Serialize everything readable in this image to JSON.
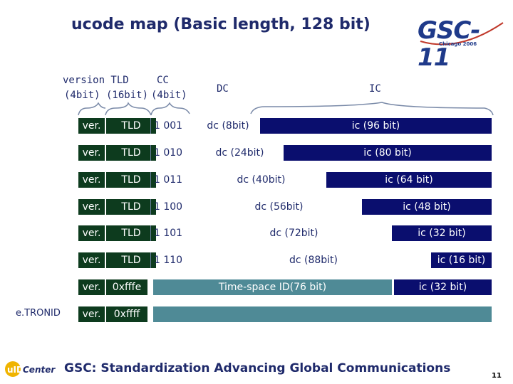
{
  "title": "ucode map (Basic length, 128 bit)",
  "logo": {
    "main": "GSC-11",
    "sub": "Chicago 2006"
  },
  "headers": {
    "version_tld": "version  TLD",
    "version_tld_bits": "(4bit) (16bit)",
    "cc": "CC",
    "cc_bits": "(4bit)",
    "dc": "DC",
    "ic": "IC"
  },
  "rows": [
    {
      "ver": "ver.",
      "tld": "TLD",
      "cc": "1 001",
      "dc": "dc (8bit)",
      "ic": "ic (96 bit)"
    },
    {
      "ver": "ver.",
      "tld": "TLD",
      "cc": "1 010",
      "dc": "dc (24bit)",
      "ic": "ic (80 bit)"
    },
    {
      "ver": "ver.",
      "tld": "TLD",
      "cc": "1 011",
      "dc": "dc (40bit)",
      "ic": "ic (64 bit)"
    },
    {
      "ver": "ver.",
      "tld": "TLD",
      "cc": "1 100",
      "dc": "dc (56bit)",
      "ic": "ic (48 bit)"
    },
    {
      "ver": "ver.",
      "tld": "TLD",
      "cc": "1 101",
      "dc": "dc (72bit)",
      "ic": "ic (32 bit)"
    },
    {
      "ver": "ver.",
      "tld": "TLD",
      "cc": "1 110",
      "dc": "dc (88bit)",
      "ic": "ic (16 bit)"
    },
    {
      "ver": "ver.",
      "hex": "0xfffe",
      "dc": "Time-space ID(76 bit)",
      "ic": "ic (32 bit)"
    },
    {
      "ver": "ver.",
      "hex": "0xffff"
    }
  ],
  "etronid_label": "e.TRONID",
  "ucenter_logo": "uID Center",
  "footer": "GSC: Standardization Advancing Global Communications",
  "page_number": "11",
  "colors": {
    "ver_tld": "#0d3b1e",
    "dc_fill": "#4f8a96",
    "ic": "#0a0e6e",
    "title": "#1f2a6b"
  }
}
